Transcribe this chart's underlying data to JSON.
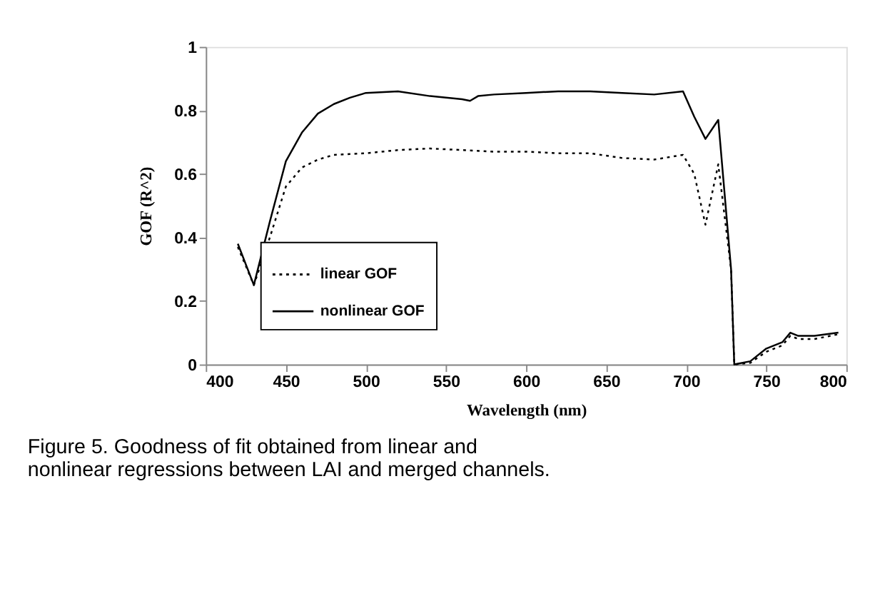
{
  "chart_data": {
    "type": "line",
    "xlabel": "Wavelength (nm)",
    "ylabel": "GOF (R^2)",
    "xlim": [
      400,
      800
    ],
    "xticks": [
      400,
      450,
      500,
      550,
      600,
      650,
      700,
      750,
      800
    ],
    "ylim": [
      0,
      1
    ],
    "yticks": [
      0,
      0.2,
      0.4,
      0.6,
      0.8,
      1
    ],
    "legend": "bottom left",
    "grid": false,
    "marker": "none",
    "annotations": [
      "Figure 5. Goodness of fit obtained from linear and nonlinear regressions between LAI and merged channels."
    ],
    "series": [
      {
        "name": "linear GOF",
        "color": "#000000",
        "line_style": "dotted",
        "x": [
          420,
          430,
          440,
          450,
          460,
          470,
          480,
          500,
          520,
          540,
          560,
          580,
          600,
          620,
          640,
          660,
          680,
          698,
          705,
          712,
          720,
          728,
          730,
          740,
          750,
          760,
          765,
          770,
          780,
          795
        ],
        "values": [
          0.37,
          0.25,
          0.4,
          0.56,
          0.62,
          0.645,
          0.66,
          0.665,
          0.675,
          0.68,
          0.675,
          0.67,
          0.67,
          0.665,
          0.665,
          0.65,
          0.645,
          0.66,
          0.6,
          0.44,
          0.63,
          0.3,
          0,
          0.005,
          0.04,
          0.06,
          0.09,
          0.08,
          0.08,
          0.095
        ]
      },
      {
        "name": "nonlinear GOF",
        "color": "#000000",
        "line_style": "solid",
        "x": [
          420,
          430,
          440,
          450,
          460,
          470,
          480,
          490,
          500,
          520,
          540,
          560,
          565,
          570,
          580,
          600,
          620,
          640,
          660,
          680,
          698,
          705,
          712,
          720,
          728,
          730,
          740,
          750,
          760,
          765,
          770,
          780,
          795
        ],
        "values": [
          0.38,
          0.25,
          0.45,
          0.64,
          0.73,
          0.79,
          0.82,
          0.84,
          0.855,
          0.86,
          0.845,
          0.835,
          0.83,
          0.845,
          0.85,
          0.855,
          0.86,
          0.86,
          0.855,
          0.85,
          0.86,
          0.78,
          0.71,
          0.77,
          0.3,
          0,
          0.01,
          0.05,
          0.07,
          0.1,
          0.09,
          0.09,
          0.1
        ]
      }
    ]
  }
}
